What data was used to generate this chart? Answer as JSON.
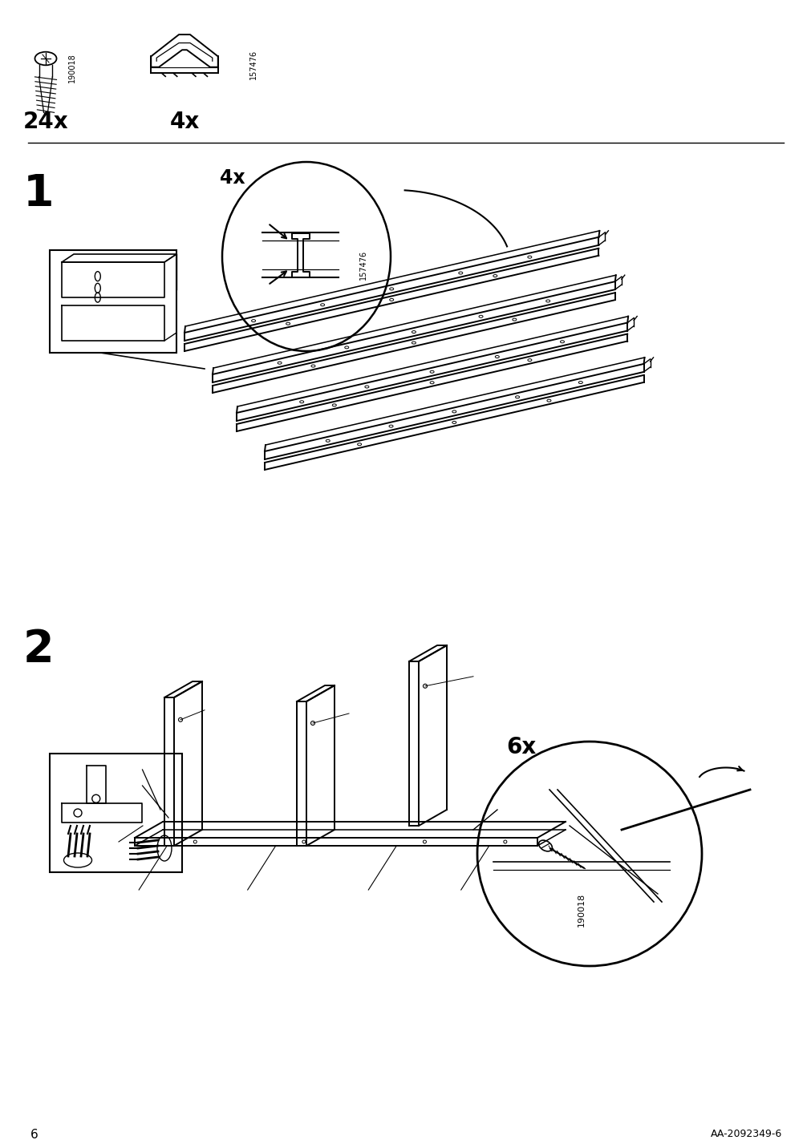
{
  "bg_color": "#ffffff",
  "line_color": "#000000",
  "page_number": "6",
  "footer_text": "AA-2092349-6",
  "step1_label": "1",
  "step2_label": "2",
  "qty_screw": "24x",
  "qty_bracket": "4x",
  "part_id_screw": "190018",
  "part_id_bracket": "157476",
  "step1_qty": "4x",
  "step1_part_id": "157476",
  "step2_qty": "6x",
  "step2_part_id": "190018",
  "figsize": [
    10.12,
    14.32
  ],
  "dpi": 100
}
